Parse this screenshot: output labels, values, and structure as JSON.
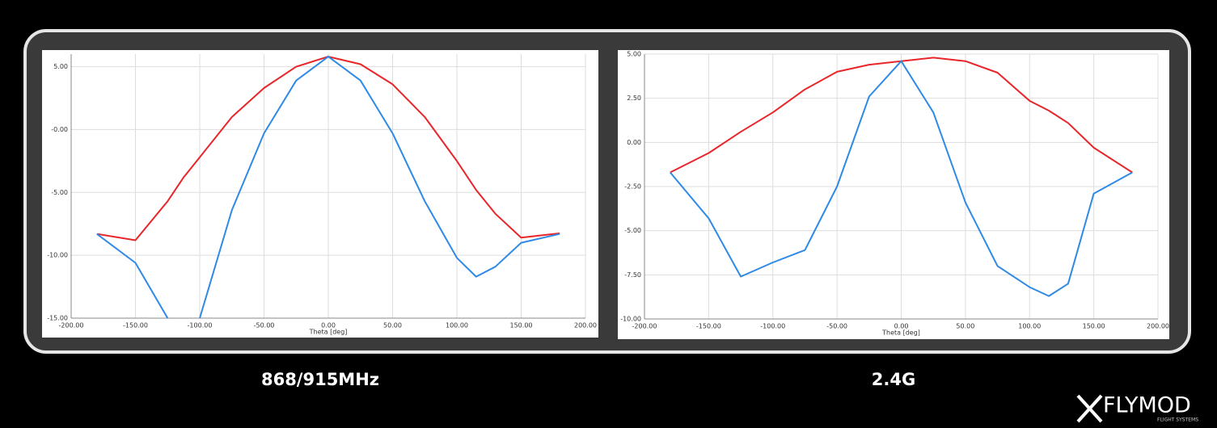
{
  "chart_data": [
    {
      "type": "line",
      "caption": "868/915MHz",
      "x_label": "Theta [deg]",
      "x": [
        -180,
        -150,
        -125,
        -112.5,
        -100,
        -75,
        -50,
        -25,
        0,
        25,
        50,
        75,
        100,
        115,
        130,
        150,
        180
      ],
      "series": [
        {
          "color": "#e8262a",
          "values": [
            -8.3,
            -8.8,
            -5.7,
            -3.8,
            -2.2,
            1.0,
            3.3,
            5.0,
            5.8,
            5.2,
            3.6,
            1.0,
            -2.5,
            -4.8,
            -6.7,
            -8.6,
            -8.25
          ]
        },
        {
          "color": "#2e8ae6",
          "values": [
            -8.3,
            -10.6,
            -15,
            null,
            -15,
            -6.4,
            -0.3,
            3.9,
            5.8,
            3.9,
            -0.3,
            -5.7,
            -10.2,
            -11.7,
            -10.9,
            -9.0,
            -8.3
          ]
        }
      ],
      "xlim": [
        -200,
        200
      ],
      "ylim": [
        -15,
        6
      ],
      "xticks": [
        {
          "value": -200,
          "label": "-200.00"
        },
        {
          "value": -150,
          "label": "-150.00"
        },
        {
          "value": -100,
          "label": "-100.00"
        },
        {
          "value": -50,
          "label": "-50.00"
        },
        {
          "value": 0,
          "label": "0.00"
        },
        {
          "value": 50,
          "label": "50.00"
        },
        {
          "value": 100,
          "label": "100.00"
        },
        {
          "value": 150,
          "label": "150.00"
        },
        {
          "value": 200,
          "label": "200.00"
        }
      ],
      "yticks": [
        {
          "value": 5,
          "label": "5.00"
        },
        {
          "value": 0,
          "label": "-0.00"
        },
        {
          "value": -5,
          "label": "-5.00"
        },
        {
          "value": -10,
          "label": "-10.00"
        },
        {
          "value": -15,
          "label": "-15.00"
        }
      ],
      "grid": true
    },
    {
      "type": "line",
      "caption": "2.4G",
      "x_label": "Theta [deg]",
      "x": [
        -180,
        -150,
        -125,
        -100,
        -75,
        -50,
        -25,
        0,
        25,
        50,
        75,
        100,
        115,
        130,
        150,
        180
      ],
      "series": [
        {
          "color": "#e8262a",
          "values": [
            -1.7,
            -0.6,
            0.6,
            1.7,
            3.0,
            4.0,
            4.4,
            4.6,
            4.8,
            4.6,
            3.95,
            2.35,
            1.8,
            1.1,
            -0.3,
            -1.7
          ]
        },
        {
          "color": "#2e8ae6",
          "values": [
            -1.7,
            -4.3,
            -7.6,
            -6.8,
            -6.1,
            -2.5,
            2.6,
            4.6,
            1.7,
            -3.4,
            -7.0,
            -8.2,
            -8.7,
            -8.0,
            -2.9,
            -1.7
          ]
        }
      ],
      "xlim": [
        -200,
        200
      ],
      "ylim": [
        -10,
        5
      ],
      "xticks": [
        {
          "value": -200,
          "label": "-200.00"
        },
        {
          "value": -150,
          "label": "-150.00"
        },
        {
          "value": -100,
          "label": "-100.00"
        },
        {
          "value": -50,
          "label": "-50.00"
        },
        {
          "value": 0,
          "label": "0.00"
        },
        {
          "value": 50,
          "label": "50.00"
        },
        {
          "value": 100,
          "label": "100.00"
        },
        {
          "value": 150,
          "label": "150.00"
        },
        {
          "value": 200,
          "label": "200.00"
        }
      ],
      "yticks": [
        {
          "value": 5,
          "label": "5.00"
        },
        {
          "value": 2.5,
          "label": "2.50"
        },
        {
          "value": 0,
          "label": "0.00"
        },
        {
          "value": -2.5,
          "label": "-2.50"
        },
        {
          "value": -5,
          "label": "-5.00"
        },
        {
          "value": -7.5,
          "label": "-7.50"
        },
        {
          "value": -10,
          "label": "-10.00"
        }
      ],
      "grid": true
    }
  ],
  "logo": {
    "text": "FLYMOD",
    "subtitle": "FLIGHT SYSTEMS"
  }
}
